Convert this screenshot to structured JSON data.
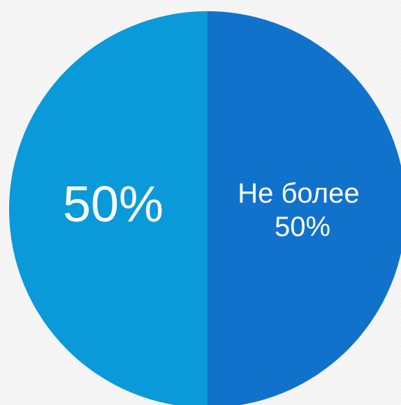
{
  "chart_data": {
    "type": "pie",
    "slices": [
      {
        "label": "50%",
        "value": 50,
        "color": "#0a9ad9"
      },
      {
        "label": "Не более 50%",
        "label_lines": [
          "Не более",
          "50%"
        ],
        "value": 50,
        "color": "#1172cc"
      }
    ]
  }
}
